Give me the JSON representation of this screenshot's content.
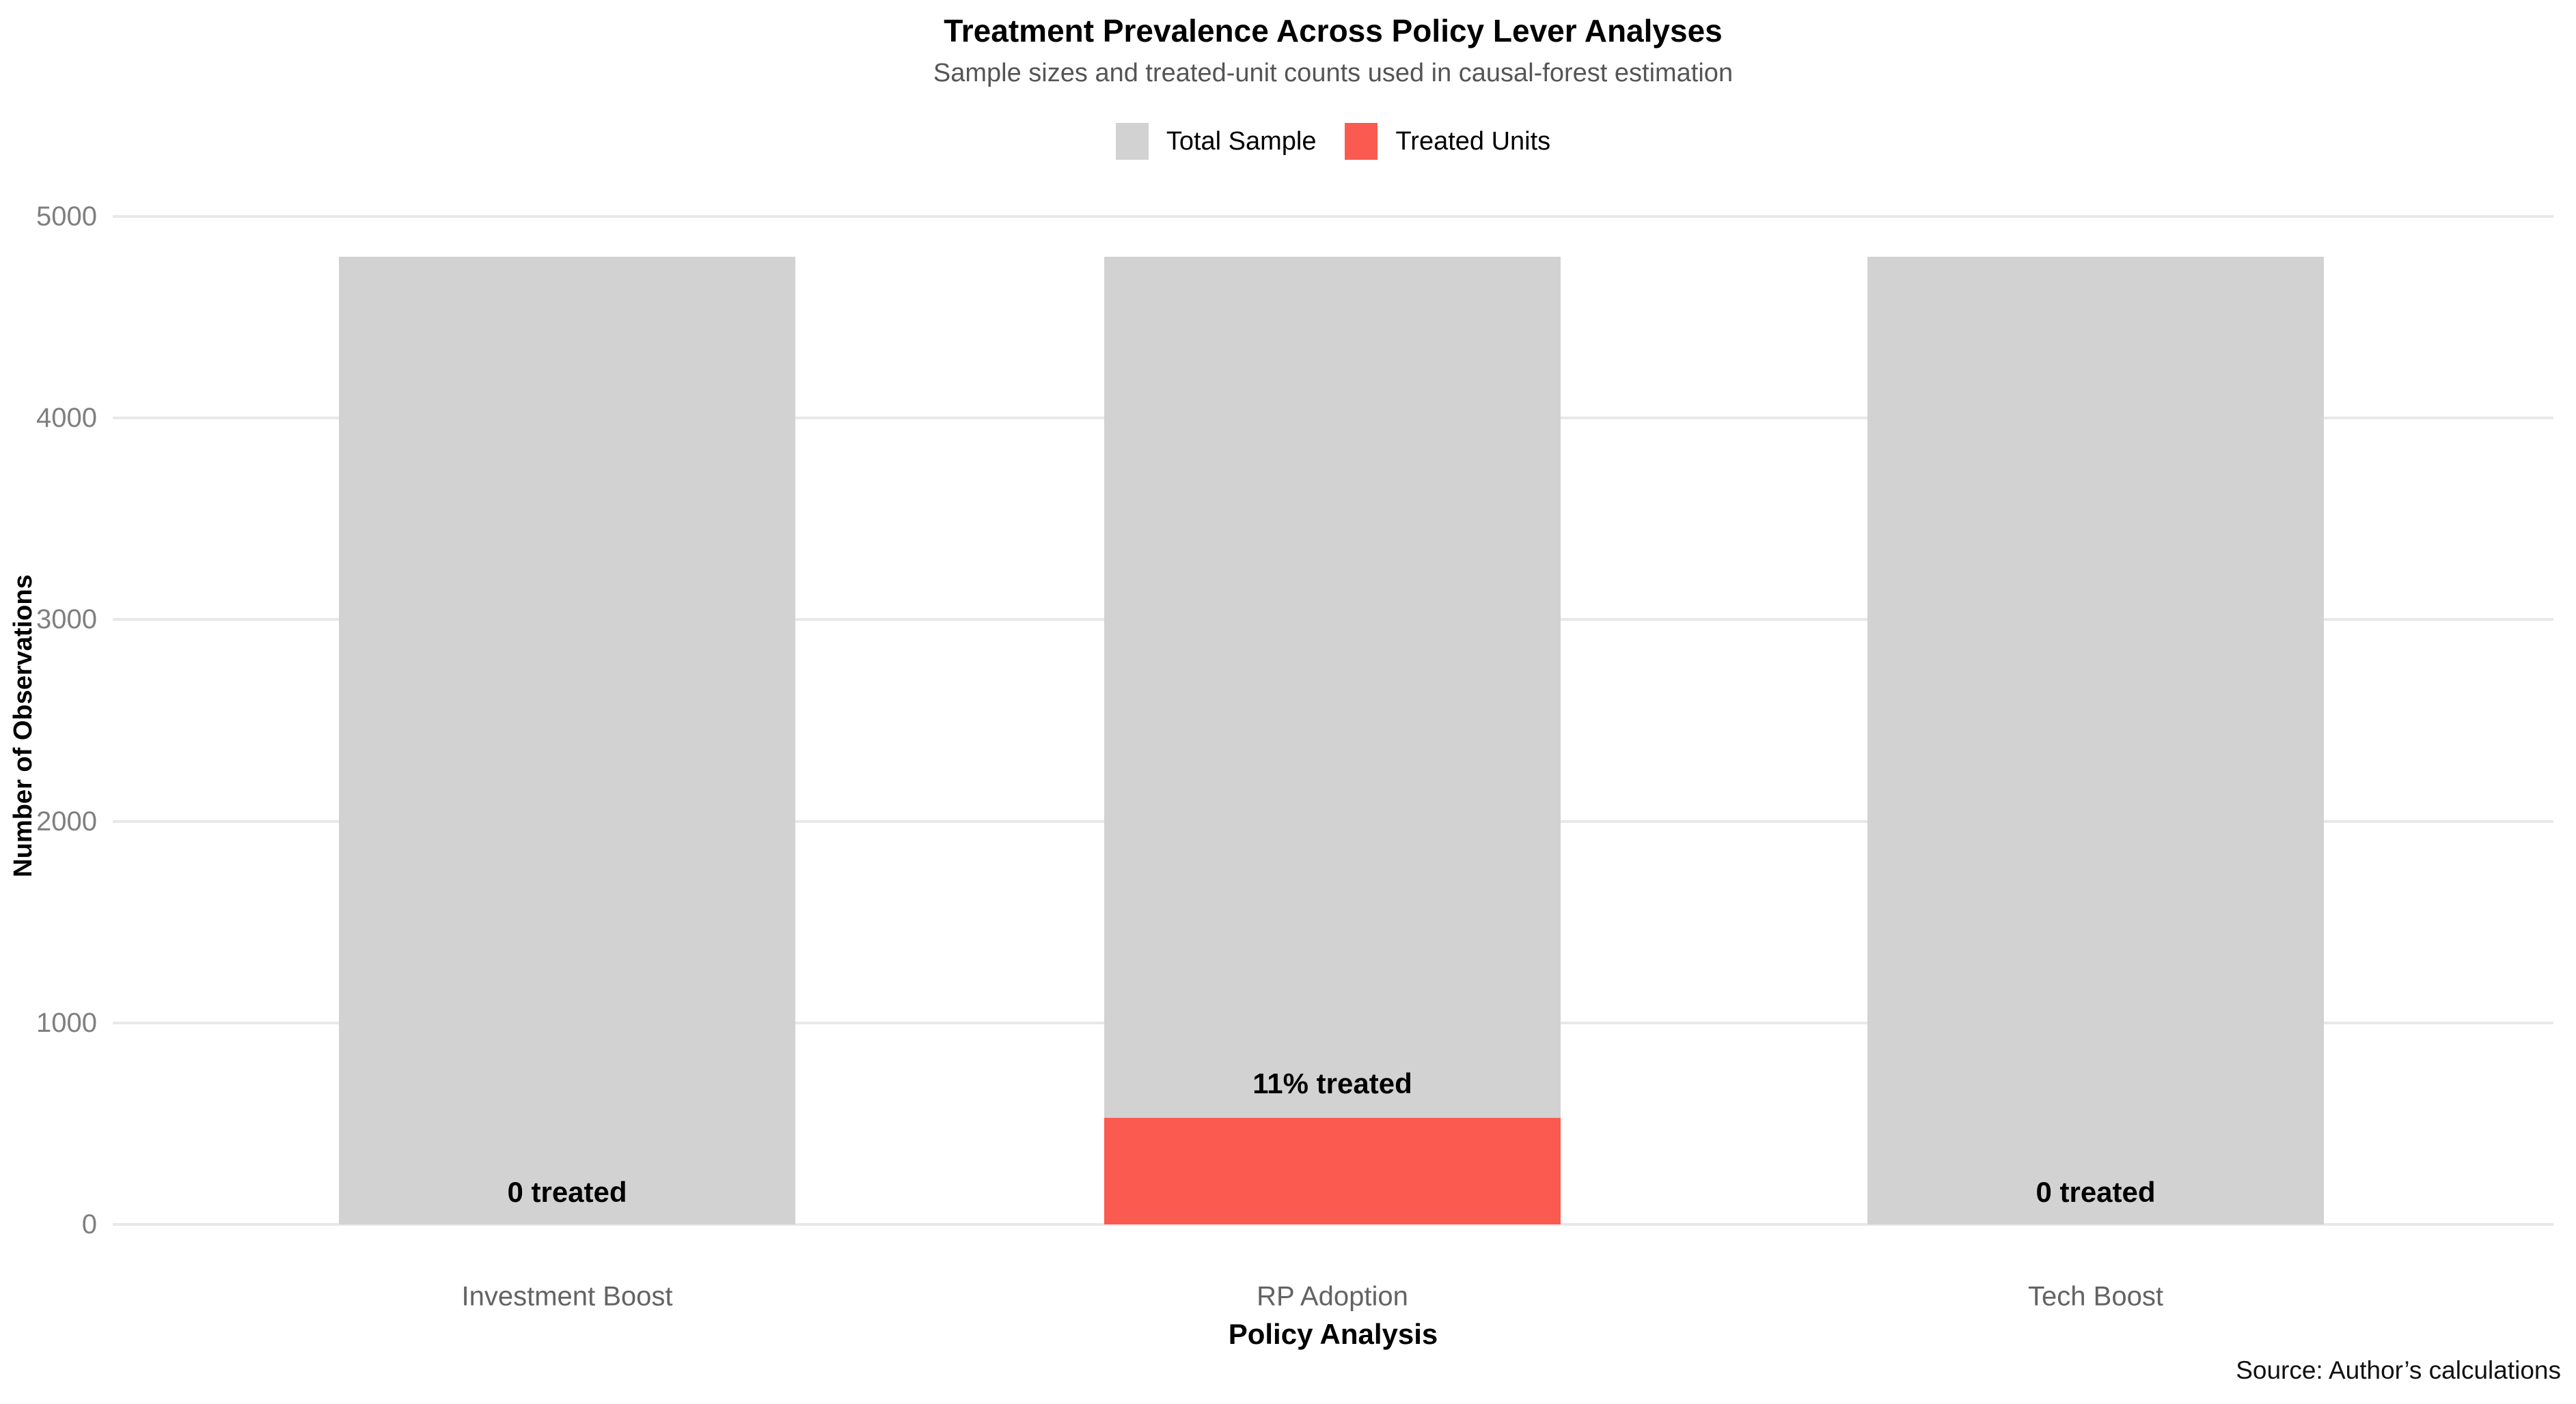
{
  "title": "Treatment Prevalence Across Policy Lever Analyses",
  "subtitle": "Sample sizes and treated-unit counts used in causal-forest estimation",
  "legend": {
    "items": [
      {
        "label": "Total Sample",
        "color": "#d2d2d2"
      },
      {
        "label": "Treated Units",
        "color": "#fa5a50"
      }
    ]
  },
  "axes": {
    "y_title": "Number of Observations",
    "x_title": "Policy Analysis"
  },
  "source_note": "Source: Author’s calculations",
  "chart_data": {
    "type": "bar",
    "categories": [
      "Investment Boost",
      "RP Adoption",
      "Tech Boost"
    ],
    "series": [
      {
        "name": "Total Sample",
        "color": "#d2d2d2",
        "values": [
          4800,
          4800,
          4800
        ]
      },
      {
        "name": "Treated Units",
        "color": "#fa5a50",
        "values": [
          0,
          528,
          0
        ]
      }
    ],
    "bar_labels": [
      "0 treated",
      "11% treated",
      "0 treated"
    ],
    "title": "Treatment Prevalence Across Policy Lever Analyses",
    "subtitle": "Sample sizes and treated-unit counts used in causal-forest estimation",
    "xlabel": "Policy Analysis",
    "ylabel": "Number of Observations",
    "ylim": [
      0,
      5000
    ],
    "yticks": [
      0,
      1000,
      2000,
      3000,
      4000,
      5000
    ],
    "grid": "horizontal",
    "legend_position": "top-center",
    "annotations": [
      "Source: Author’s calculations"
    ]
  }
}
